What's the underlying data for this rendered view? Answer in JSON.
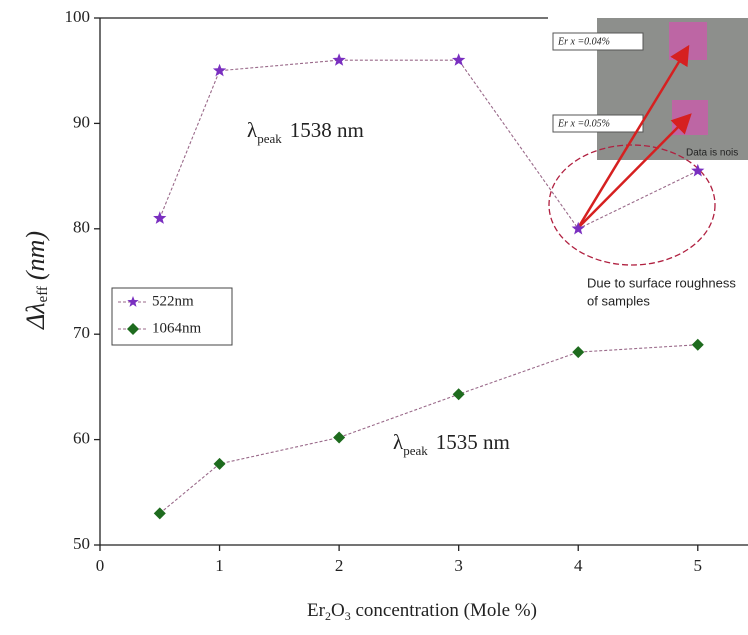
{
  "chart_data": {
    "type": "line",
    "x_label": {
      "a": "Er",
      "b": "2",
      "c": "O",
      "d": "3",
      "e": " concentration (Mole %)"
    },
    "y_label": {
      "main": "Δλ",
      "sub": "eff",
      "unit": "(nm)"
    },
    "x": [
      0.5,
      1,
      2,
      3,
      4,
      5
    ],
    "series": [
      {
        "name": "522nm",
        "color": "#7a2fc0",
        "marker": "star",
        "values": [
          81,
          95,
          96,
          96,
          80,
          85.5
        ]
      },
      {
        "name": "1064nm",
        "color": "#1e6b1e",
        "marker": "diamond",
        "values": [
          53,
          57.7,
          60.2,
          64.3,
          68.3,
          69
        ]
      }
    ],
    "xlim": [
      0,
      5.42
    ],
    "xticks": [
      0,
      1,
      2,
      3,
      4,
      5
    ],
    "ylim": [
      50,
      100
    ],
    "yticks": [
      50,
      60,
      70,
      80,
      90,
      100
    ],
    "legend": "upper-left",
    "annotations": [
      {
        "lambda": "λ",
        "sub": "peak",
        "rest": "1538 nm"
      },
      {
        "lambda": "λ",
        "sub": "peak",
        "rest": "1535 nm"
      },
      {
        "text1": "Due to surface roughness",
        "text2": "of samples"
      }
    ],
    "inset": {
      "label1": "Er x =0.04%",
      "label2": "Er x =0.05%",
      "label3": "Data is nois"
    }
  }
}
